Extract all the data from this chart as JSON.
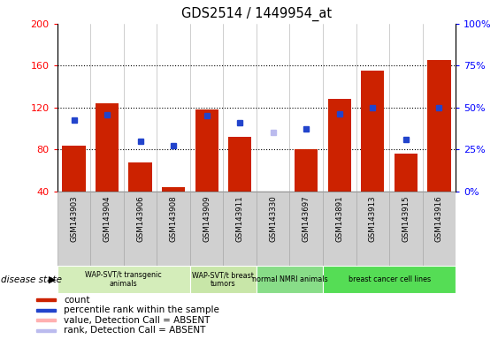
{
  "title": "GDS2514 / 1449954_at",
  "samples": [
    "GSM143903",
    "GSM143904",
    "GSM143906",
    "GSM143908",
    "GSM143909",
    "GSM143911",
    "GSM143330",
    "GSM143697",
    "GSM143891",
    "GSM143913",
    "GSM143915",
    "GSM143916"
  ],
  "count_values": [
    84,
    124,
    68,
    44,
    118,
    92,
    40,
    80,
    128,
    155,
    76,
    165
  ],
  "count_absent": [
    false,
    false,
    false,
    false,
    false,
    false,
    true,
    false,
    false,
    false,
    false,
    false
  ],
  "rank_values": [
    108,
    113,
    88,
    84,
    112,
    106,
    96,
    100,
    114,
    120,
    90,
    120
  ],
  "rank_absent": [
    false,
    false,
    false,
    false,
    false,
    false,
    true,
    false,
    false,
    false,
    false,
    false
  ],
  "ylim_left": [
    40,
    200
  ],
  "ylim_right": [
    0,
    100
  ],
  "yticks_left": [
    40,
    80,
    120,
    160,
    200
  ],
  "yticks_right": [
    0,
    25,
    50,
    75,
    100
  ],
  "bar_color": "#cc2200",
  "bar_absent_color": "#ffb0b0",
  "dot_color": "#2244cc",
  "dot_absent_color": "#bbbbee",
  "groups": [
    {
      "label": "WAP-SVT/t transgenic\nanimals",
      "start": 0,
      "end": 3,
      "color": "#d4edba"
    },
    {
      "label": "WAP-SVT/t breast\ntumors",
      "start": 4,
      "end": 5,
      "color": "#c8e6a8"
    },
    {
      "label": "normal NMRI animals",
      "start": 6,
      "end": 7,
      "color": "#88dd88"
    },
    {
      "label": "breast cancer cell lines",
      "start": 8,
      "end": 11,
      "color": "#55dd55"
    }
  ],
  "legend_items": [
    {
      "label": "count",
      "color": "#cc2200"
    },
    {
      "label": "percentile rank within the sample",
      "color": "#2244cc"
    },
    {
      "label": "value, Detection Call = ABSENT",
      "color": "#ffb0b0"
    },
    {
      "label": "rank, Detection Call = ABSENT",
      "color": "#bbbbee"
    }
  ],
  "disease_state_label": "disease state",
  "col_bg_color": "#d0d0d0",
  "col_border_color": "#aaaaaa"
}
